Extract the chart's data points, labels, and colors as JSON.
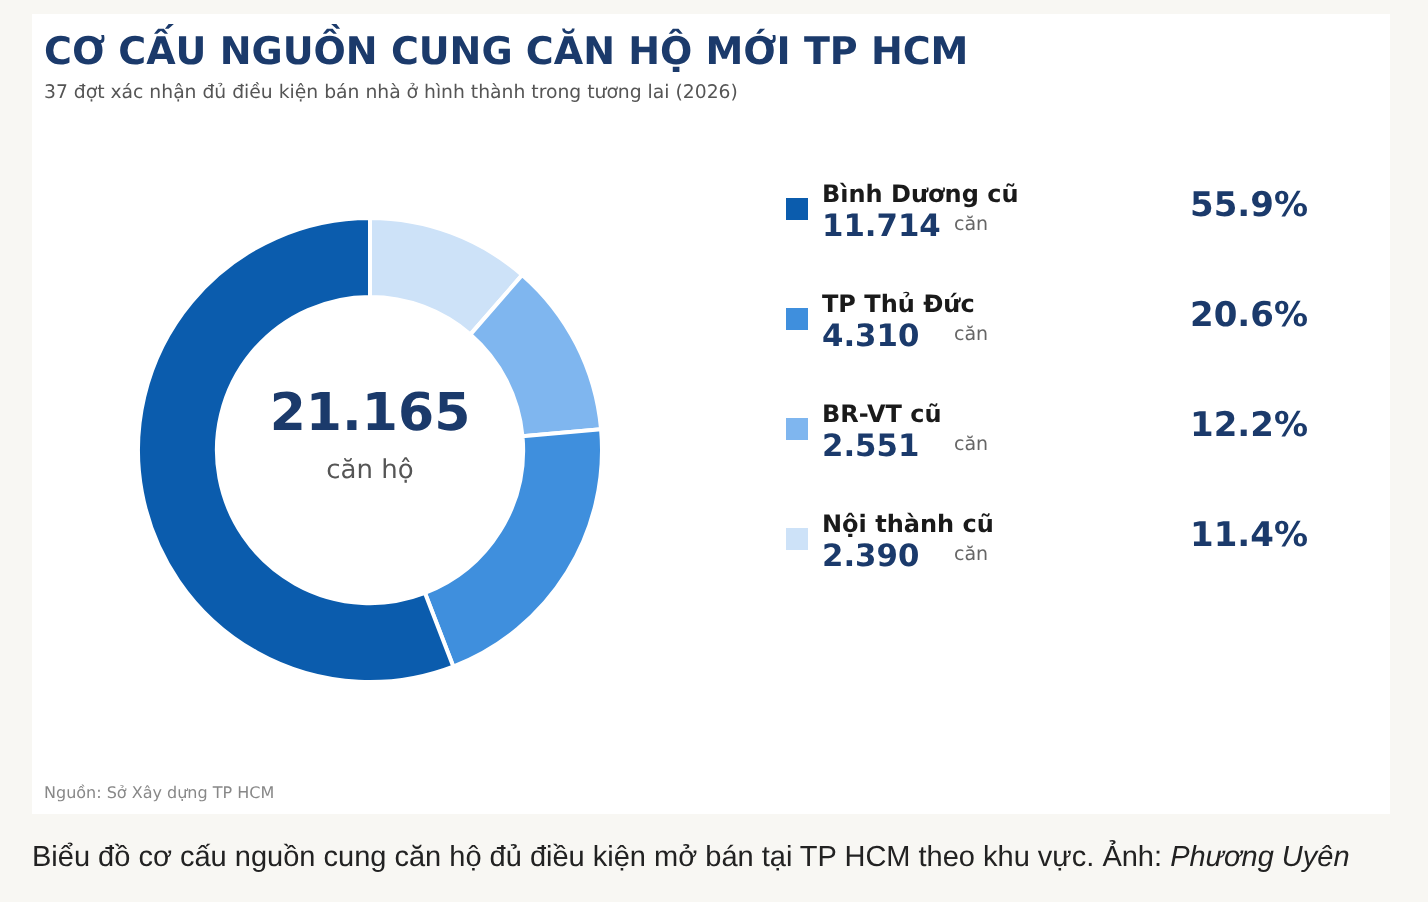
{
  "chart_data": {
    "type": "donut",
    "title": "CƠ CẤU NGUỒN CUNG CĂN HỘ MỚI TP HCM",
    "subtitle": "37 đợt xác nhận đủ điều kiện bán nhà ở hình thành trong tương lai (2026)",
    "categories": [
      "Bình Dương cũ",
      "TP Thủ Đức",
      "BR-VT cũ",
      "Nội thành cũ"
    ],
    "values": [
      55.9,
      20.6,
      12.2,
      11.4
    ],
    "colors": [
      "#0b5cad",
      "#3f8fdd",
      "#7fb6ef",
      "#cde2f8"
    ],
    "value_labels": [
      "55.9%",
      "20.6%",
      "12.2%",
      "11.4%"
    ],
    "legend": "right",
    "annotations": [
      "21.165",
      "căn hộ",
      "11.714",
      "căn",
      "4.310",
      "căn",
      "2.551",
      "căn",
      "2.390",
      "căn",
      "Nguồn: Sở Xây dựng TP HCM",
      "Biểu đồ cơ cấu nguồn cung căn hộ đủ điều kiện mở bán tại TP HCM theo khu vực. Ảnh:",
      "Phương Uyên"
    ]
  }
}
